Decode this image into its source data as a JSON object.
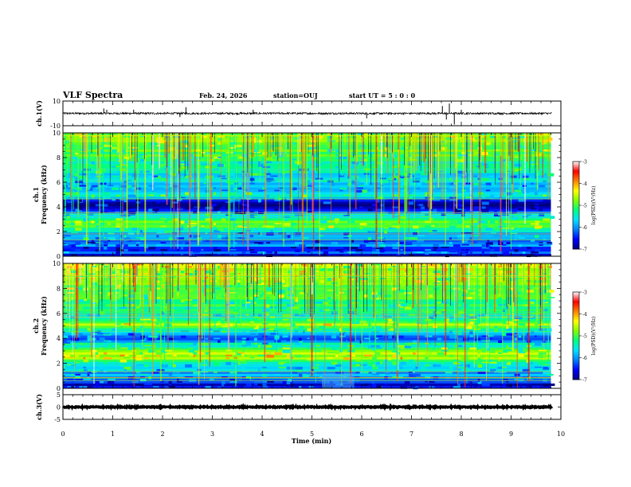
{
  "header": {
    "title": "VLF Spectra",
    "date": "Feb. 24, 2026",
    "station": "station=OUJ",
    "start": "start UT =  5 : 0  : 0"
  },
  "chart_data": [
    {
      "panel": "ch1-waveform",
      "type": "line",
      "ylabel": "ch.1(V)",
      "ylim": [
        -10,
        10
      ],
      "yticks": [
        {
          "v": 10,
          "label": "10"
        },
        {
          "v": -10,
          "label": "-10"
        }
      ],
      "xlim": [
        0,
        10
      ],
      "baseline": 0,
      "noise_amplitude": 0.8,
      "spikes": [
        {
          "t": 0.82,
          "v": 4
        },
        {
          "t": 0.88,
          "v": 3
        },
        {
          "t": 1.42,
          "v": 3
        },
        {
          "t": 2.35,
          "v": -3
        },
        {
          "t": 2.47,
          "v": 5
        },
        {
          "t": 3.82,
          "v": 3
        },
        {
          "t": 6.1,
          "v": -4
        },
        {
          "t": 7.62,
          "v": 6
        },
        {
          "t": 7.7,
          "v": -5
        },
        {
          "t": 7.76,
          "v": 8
        },
        {
          "t": 7.86,
          "v": -9
        },
        {
          "t": 8.0,
          "v": 3
        }
      ]
    },
    {
      "panel": "ch1-spectrogram",
      "type": "heatmap",
      "ylabel": "ch.1\nFrequency (kHz)",
      "ylim": [
        0,
        10
      ],
      "yticks": [
        {
          "v": 0,
          "label": "0"
        },
        {
          "v": 2,
          "label": "2"
        },
        {
          "v": 4,
          "label": "4"
        },
        {
          "v": 6,
          "label": "6"
        },
        {
          "v": 8,
          "label": "8"
        },
        {
          "v": 10,
          "label": "10"
        }
      ],
      "xlim": [
        0,
        9.8
      ],
      "colorbar": {
        "label": "log(PSD)(V²/Hz)",
        "range": [
          -7,
          -3
        ],
        "ticks": [
          {
            "v": -3,
            "label": "-3"
          },
          {
            "v": -4,
            "label": "-4"
          },
          {
            "v": -5,
            "label": "-5"
          },
          {
            "v": -6,
            "label": "-6"
          },
          {
            "v": -7,
            "label": "-7"
          }
        ],
        "colors": [
          "#00007f",
          "#0000ff",
          "#0080ff",
          "#00e0ff",
          "#00ff80",
          "#80ff00",
          "#ffff00",
          "#ff8000",
          "#ff0000",
          "#ffffff"
        ]
      },
      "frequency_profile_khz_logpsd": [
        [
          0.0,
          -7.0
        ],
        [
          0.3,
          -6.2
        ],
        [
          0.6,
          -6.8
        ],
        [
          0.9,
          -6.0
        ],
        [
          1.2,
          -6.6
        ],
        [
          1.5,
          -5.6
        ],
        [
          1.8,
          -6.2
        ],
        [
          2.1,
          -5.3
        ],
        [
          2.4,
          -4.9
        ],
        [
          2.7,
          -5.0
        ],
        [
          3.0,
          -5.2
        ],
        [
          3.3,
          -5.6
        ],
        [
          3.6,
          -6.4
        ],
        [
          3.9,
          -6.9
        ],
        [
          4.2,
          -6.9
        ],
        [
          4.5,
          -6.5
        ],
        [
          4.8,
          -5.3
        ],
        [
          5.1,
          -5.4
        ],
        [
          5.4,
          -5.9
        ],
        [
          6.0,
          -5.8
        ],
        [
          6.6,
          -5.6
        ],
        [
          7.2,
          -5.4
        ],
        [
          7.8,
          -5.2
        ],
        [
          8.4,
          -5.0
        ],
        [
          9.0,
          -4.9
        ],
        [
          10.0,
          -4.8
        ]
      ]
    },
    {
      "panel": "ch2-spectrogram",
      "type": "heatmap",
      "ylabel": "ch.2\nFrequency (kHz)",
      "ylim": [
        0,
        10
      ],
      "yticks": [
        {
          "v": 0,
          "label": "0"
        },
        {
          "v": 2,
          "label": "2"
        },
        {
          "v": 4,
          "label": "4"
        },
        {
          "v": 6,
          "label": "6"
        },
        {
          "v": 8,
          "label": "8"
        },
        {
          "v": 10,
          "label": "10"
        }
      ],
      "xlim": [
        0,
        9.8
      ],
      "colorbar": {
        "label": "log(PSD)(V²/Hz)",
        "range": [
          -7,
          -3
        ],
        "ticks": [
          {
            "v": -3,
            "label": "-3"
          },
          {
            "v": -4,
            "label": "-4"
          },
          {
            "v": -5,
            "label": "-5"
          },
          {
            "v": -6,
            "label": "-6"
          },
          {
            "v": -7,
            "label": "-7"
          }
        ],
        "colors": [
          "#00007f",
          "#0000ff",
          "#0080ff",
          "#00e0ff",
          "#00ff80",
          "#80ff00",
          "#ffff00",
          "#ff8000",
          "#ff0000",
          "#ffffff"
        ]
      },
      "frequency_profile_khz_logpsd": [
        [
          0.0,
          -6.4
        ],
        [
          0.3,
          -6.9
        ],
        [
          0.6,
          -6.2
        ],
        [
          0.9,
          -5.8
        ],
        [
          1.2,
          -6.0
        ],
        [
          1.5,
          -5.6
        ],
        [
          1.8,
          -5.5
        ],
        [
          2.1,
          -5.2
        ],
        [
          2.4,
          -4.5
        ],
        [
          2.7,
          -4.6
        ],
        [
          3.0,
          -5.0
        ],
        [
          3.3,
          -5.2
        ],
        [
          3.6,
          -5.6
        ],
        [
          3.9,
          -6.2
        ],
        [
          4.2,
          -6.0
        ],
        [
          4.5,
          -5.6
        ],
        [
          4.8,
          -5.0
        ],
        [
          5.1,
          -4.6
        ],
        [
          5.4,
          -4.9
        ],
        [
          5.7,
          -5.4
        ],
        [
          6.3,
          -5.3
        ],
        [
          7.0,
          -5.1
        ],
        [
          7.8,
          -4.9
        ],
        [
          8.5,
          -4.7
        ],
        [
          9.2,
          -4.6
        ],
        [
          10.0,
          -4.5
        ]
      ]
    },
    {
      "panel": "ch3-waveform",
      "type": "line",
      "ylabel": "ch.3(V)",
      "ylim": [
        -5,
        5
      ],
      "yticks": [
        {
          "v": 5,
          "label": "5"
        },
        {
          "v": 0,
          "label": "0"
        },
        {
          "v": -5,
          "label": "-5"
        }
      ],
      "xlim": [
        0,
        10
      ],
      "baseline": 0,
      "noise_amplitude": 0.2
    }
  ],
  "x_axis": {
    "label": "Time (min)",
    "ticks": [
      {
        "v": 0,
        "label": "0"
      },
      {
        "v": 1,
        "label": "1"
      },
      {
        "v": 2,
        "label": "2"
      },
      {
        "v": 3,
        "label": "3"
      },
      {
        "v": 4,
        "label": "4"
      },
      {
        "v": 5,
        "label": "5"
      },
      {
        "v": 6,
        "label": "6"
      },
      {
        "v": 7,
        "label": "7"
      },
      {
        "v": 8,
        "label": "8"
      },
      {
        "v": 9,
        "label": "9"
      },
      {
        "v": 10,
        "label": "10"
      }
    ]
  }
}
